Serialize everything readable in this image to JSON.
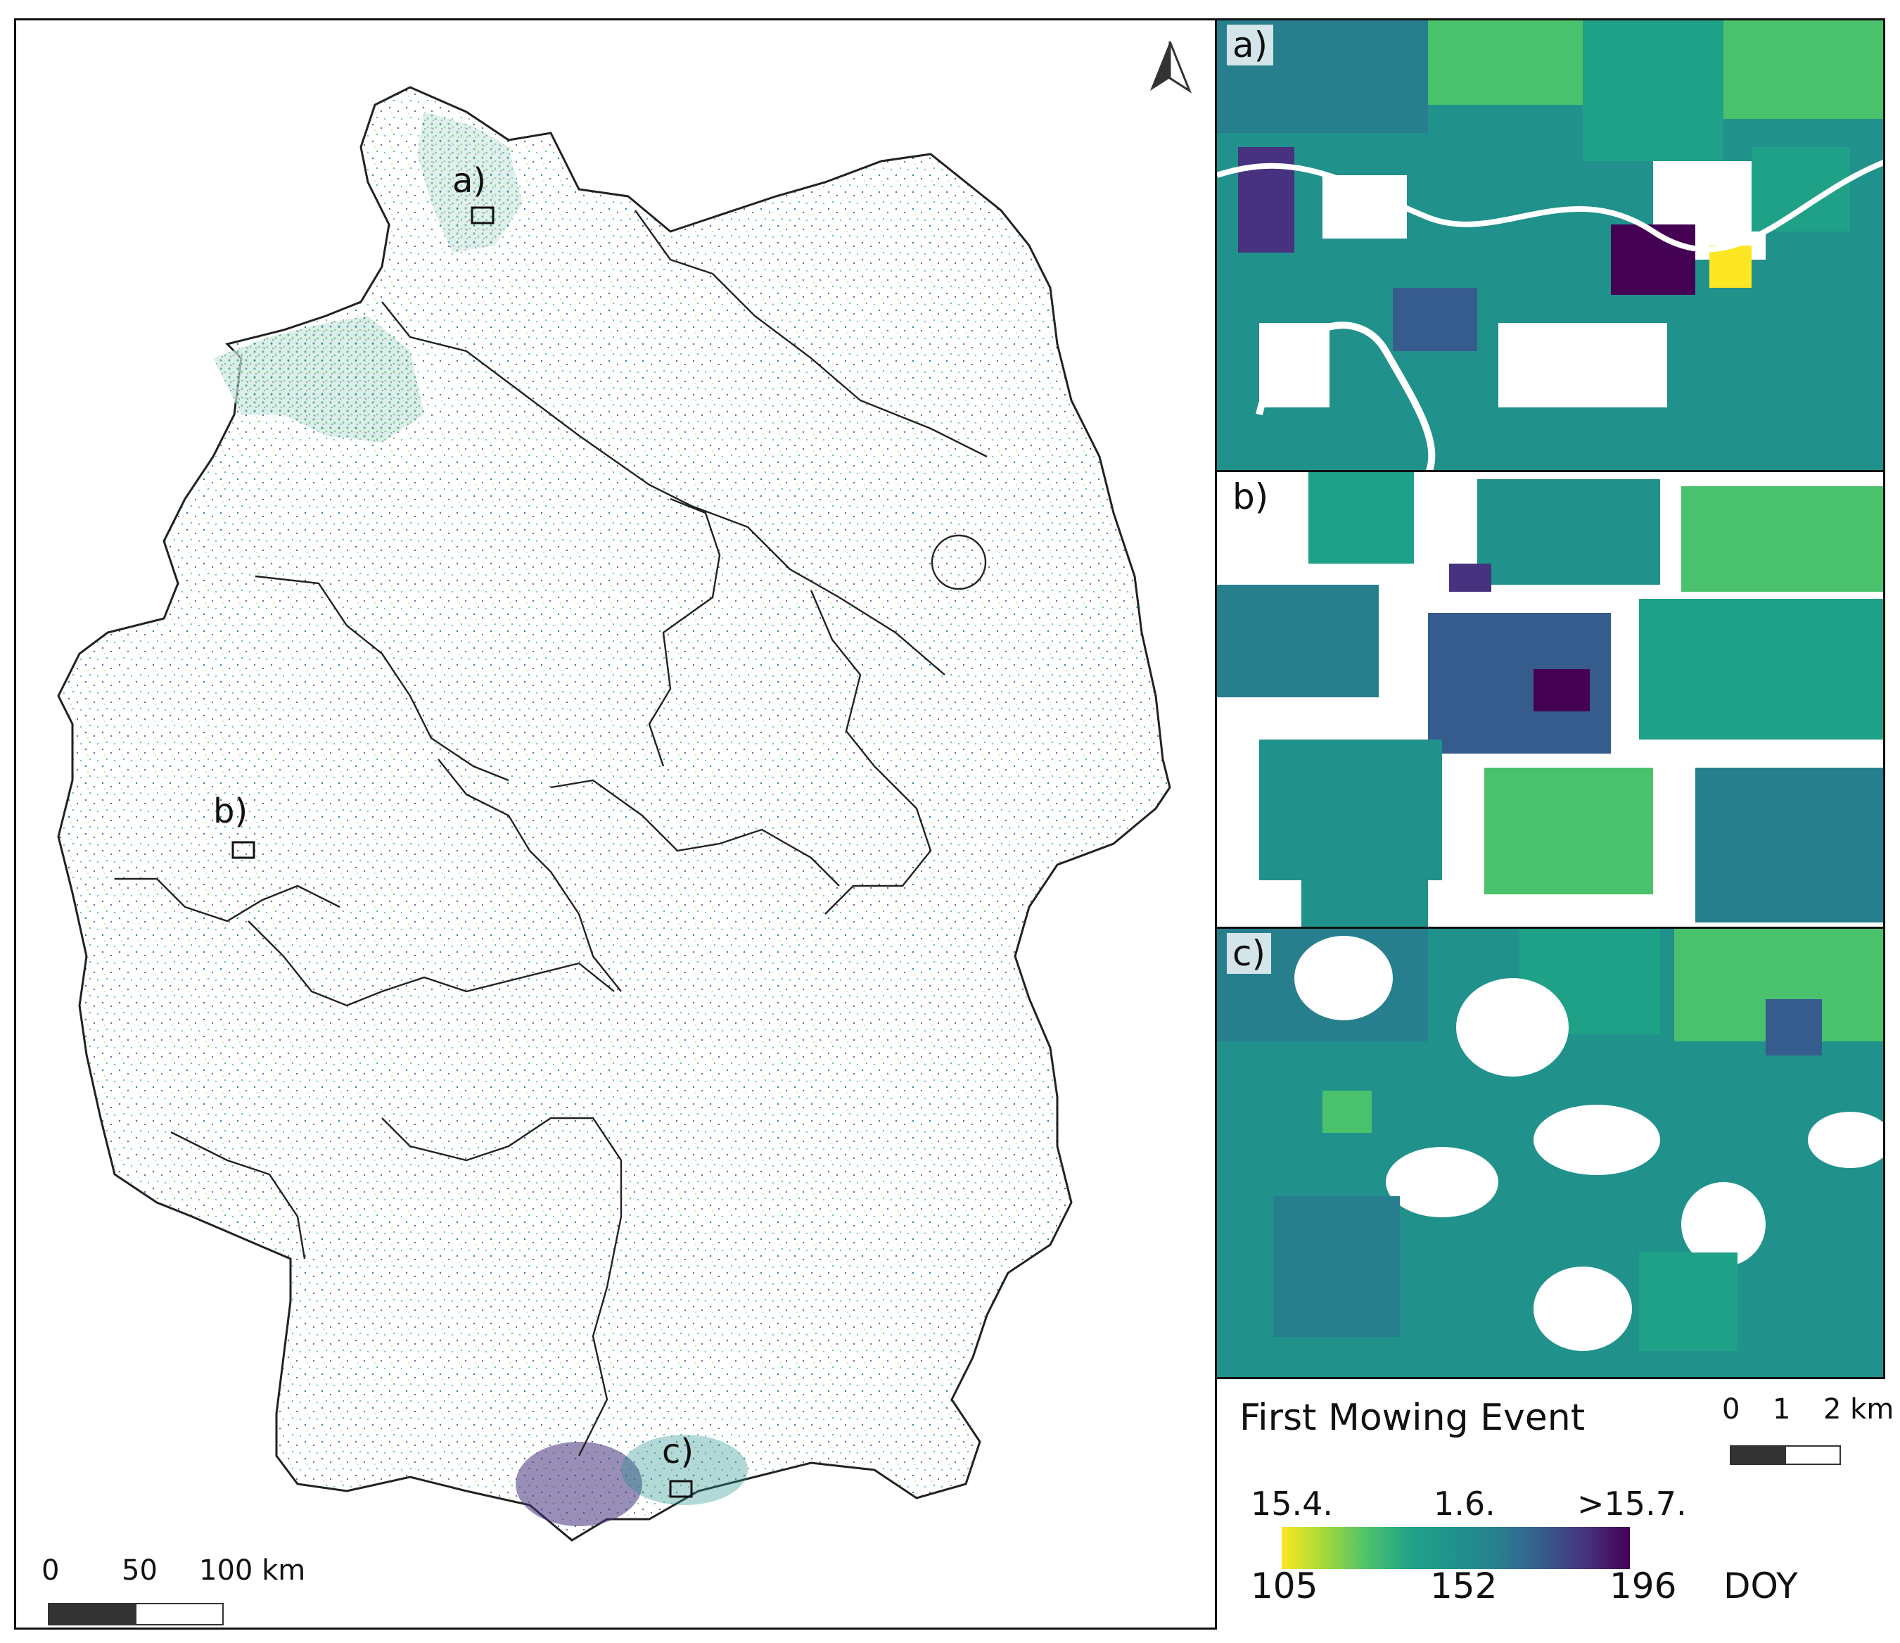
{
  "main_map": {
    "region_labels": [
      "a)",
      "b)",
      "c)"
    ],
    "scale_bar": {
      "ticks": [
        "0",
        "50",
        "100 km"
      ]
    }
  },
  "insets": [
    {
      "label": "a)"
    },
    {
      "label": "b)"
    },
    {
      "label": "c)"
    }
  ],
  "inset_scale_bar": {
    "ticks": [
      "0",
      "1",
      "2 km"
    ]
  },
  "legend": {
    "title": "First Mowing Event",
    "date_labels": [
      "15.4.",
      "1.6.",
      ">15.7."
    ],
    "doy_values": [
      "105",
      "152",
      "196"
    ],
    "unit": "DOY",
    "colormap": [
      "#fde725",
      "#a0da39",
      "#4ac16d",
      "#1fa187",
      "#21918c",
      "#277f8e",
      "#365c8d",
      "#46327e",
      "#440154"
    ]
  }
}
